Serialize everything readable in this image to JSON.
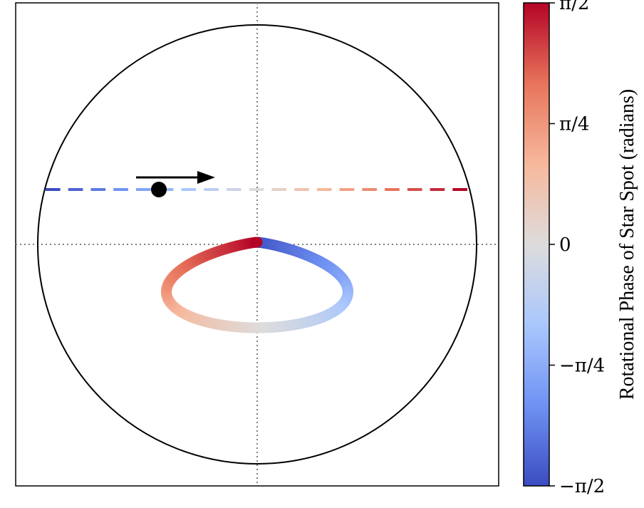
{
  "chart_data": {
    "type": "diagram",
    "colormap": {
      "name": "coolwarm",
      "stops": [
        "#3b4cc0",
        "#6f92f3",
        "#aac7fd",
        "#dddcdc",
        "#f7b89c",
        "#e7745b",
        "#b40426"
      ]
    },
    "colorbar": {
      "label": "Rotational Phase of Star Spot (radians)",
      "range": [
        -1.5708,
        1.5708
      ],
      "ticks": [
        {
          "value": 1.5708,
          "label": "π/2"
        },
        {
          "value": 0.7854,
          "label": "π/4"
        },
        {
          "value": 0,
          "label": "0"
        },
        {
          "value": -0.7854,
          "label": "−π/4"
        },
        {
          "value": -1.5708,
          "label": "−π/2"
        }
      ]
    },
    "guide_lines": {
      "style": "dotted",
      "color": "#808080"
    },
    "stellar_disk": {
      "outline_color": "#000000"
    },
    "transit_chord": {
      "style": "dashed",
      "segment_count": 19
    },
    "planet": {
      "color": "#000000",
      "motion": "left-to-right"
    },
    "spot_track": {
      "shape": "teardrop loop",
      "phase_range": [
        -1.5708,
        1.5708
      ]
    }
  }
}
